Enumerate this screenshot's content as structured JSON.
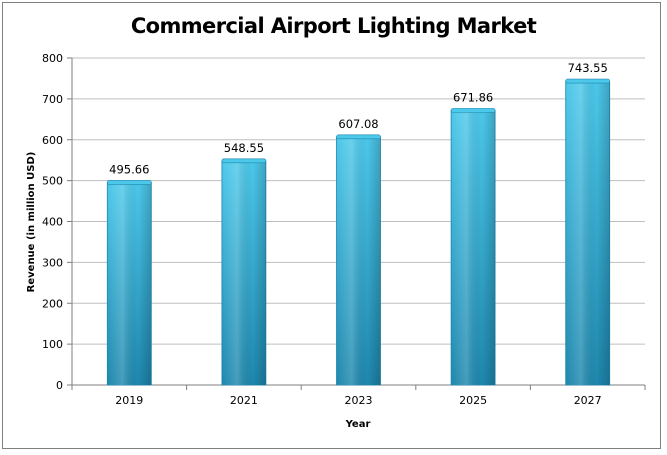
{
  "chart_data": {
    "type": "bar",
    "title": "Commercial Airport Lighting Market",
    "xlabel": "Year",
    "ylabel": "Revenue (in million USD)",
    "categories": [
      "2019",
      "2021",
      "2023",
      "2025",
      "2027"
    ],
    "values": [
      495.66,
      548.55,
      607.08,
      671.86,
      743.55
    ],
    "data_labels": [
      "495.66",
      "548.55",
      "607.08",
      "671.86",
      "743.55"
    ],
    "ylim": [
      0,
      800
    ],
    "yticks": [
      0,
      100,
      200,
      300,
      400,
      500,
      600,
      700,
      800
    ],
    "grid": true,
    "legend": "none",
    "colors": {
      "bar_light": "#4cc8ea",
      "bar_dark": "#1e87ad",
      "bar_mid": "#33a9d2",
      "grid": "#bfbfbf",
      "axis": "#7f7f7f"
    }
  }
}
